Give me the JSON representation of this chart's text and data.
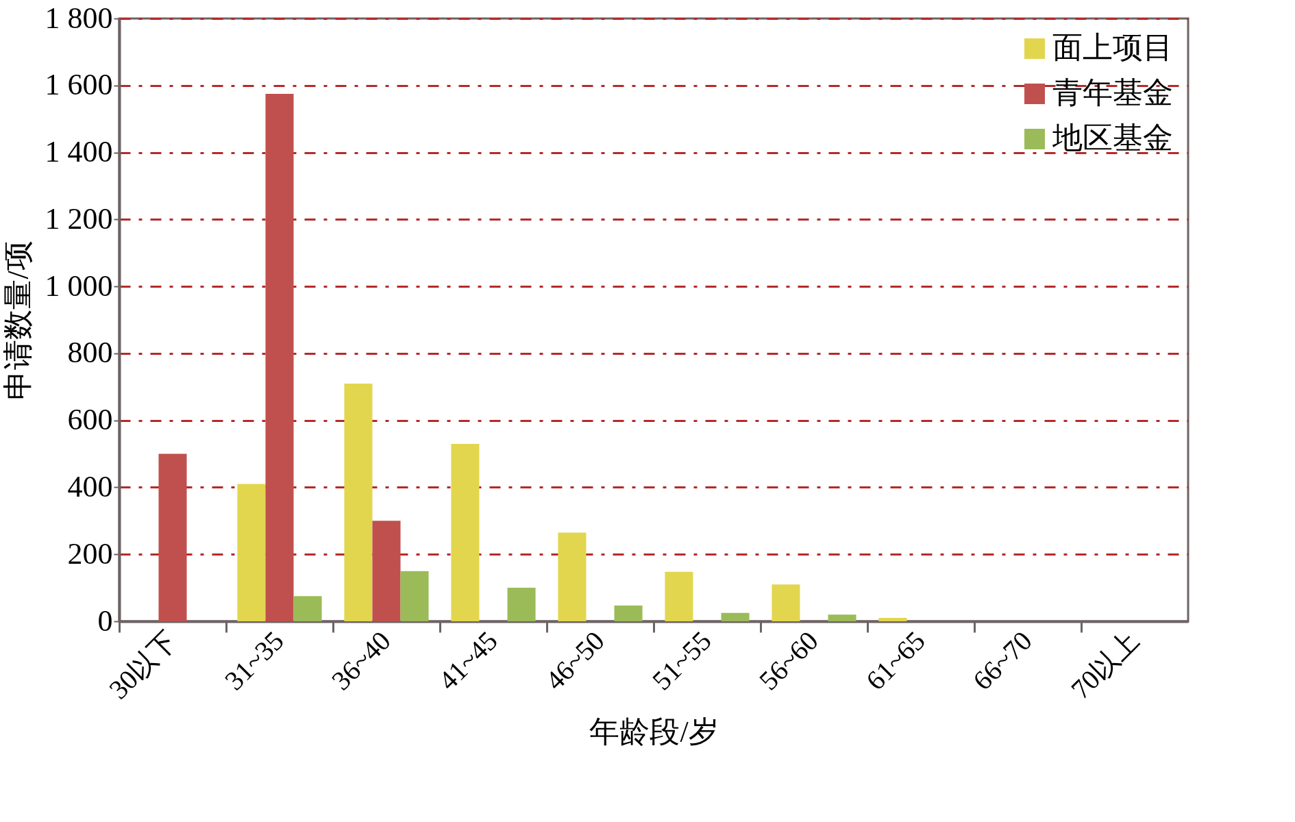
{
  "chart_data": {
    "type": "bar",
    "xlabel": "年龄段/岁",
    "ylabel": "申请数量/项",
    "categories": [
      "30以下",
      "31~35",
      "36~40",
      "41~45",
      "46~50",
      "51~55",
      "56~60",
      "61~65",
      "66~70",
      "70以上"
    ],
    "series": [
      {
        "name": "面上项目",
        "color": "#e2d64e",
        "values": [
          null,
          410,
          710,
          530,
          265,
          148,
          110,
          10,
          null,
          null
        ]
      },
      {
        "name": "青年基金",
        "color": "#c0504d",
        "values": [
          500,
          1575,
          300,
          null,
          null,
          null,
          null,
          null,
          null,
          null
        ]
      },
      {
        "name": "地区基金",
        "color": "#9bbb59",
        "values": [
          null,
          75,
          150,
          100,
          47,
          25,
          20,
          null,
          null,
          null
        ]
      }
    ],
    "ylim": [
      0,
      1800
    ],
    "yticks": [
      0,
      200,
      400,
      600,
      800,
      {
        "value": 1000,
        "label": "1 000"
      },
      {
        "value": 1200,
        "label": "1 200"
      },
      {
        "value": 1400,
        "label": "1 400"
      },
      {
        "value": 1600,
        "label": "1 600"
      },
      {
        "value": 1800,
        "label": "1 800"
      }
    ],
    "grid": "y",
    "legend": "top right"
  }
}
